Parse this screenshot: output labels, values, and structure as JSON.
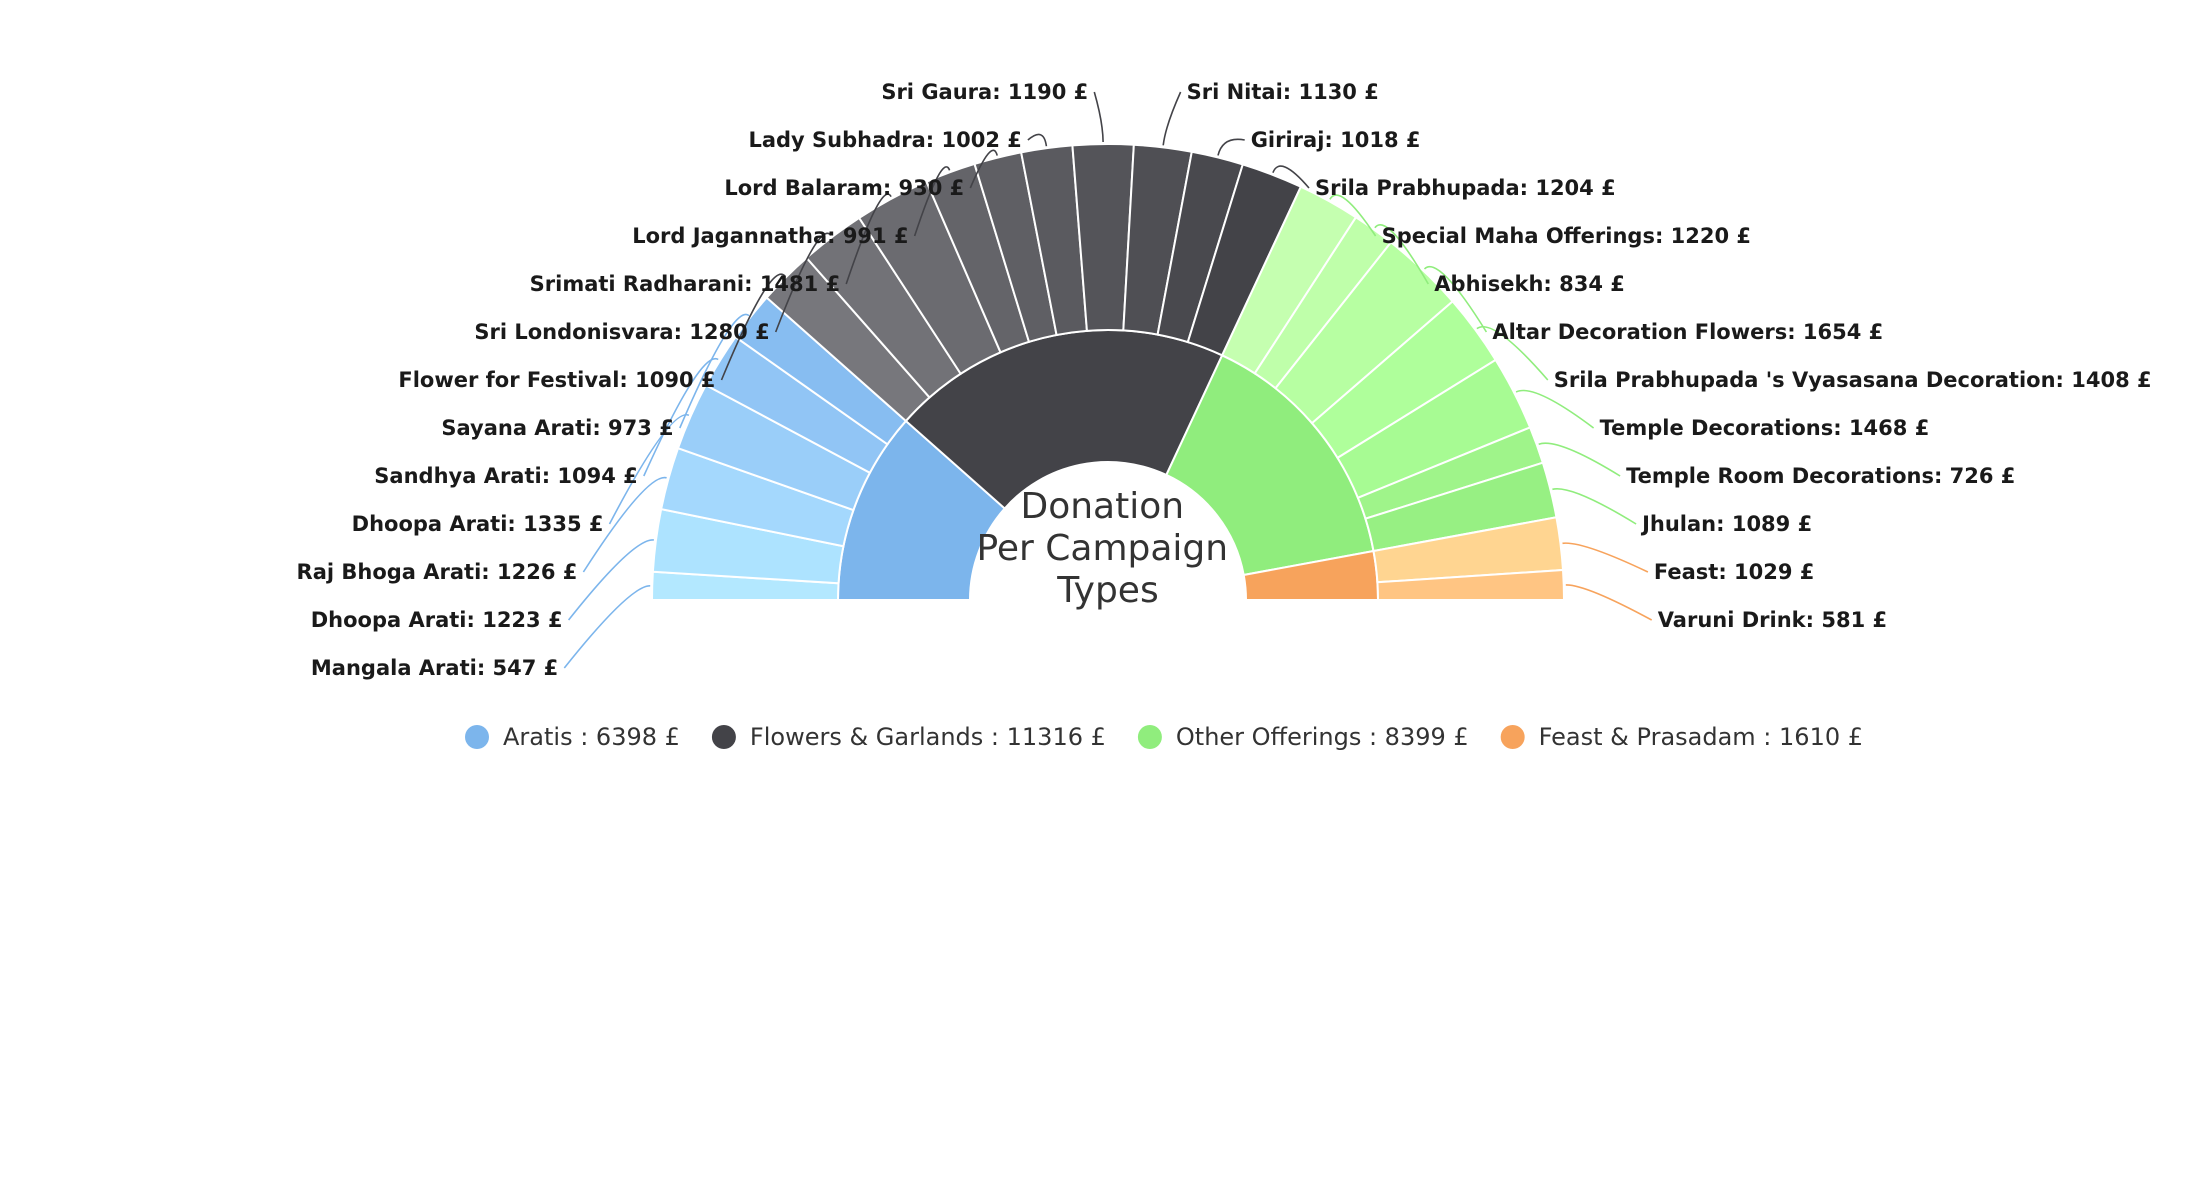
{
  "chart_data": {
    "type": "pie",
    "title_lines": [
      "Donation",
      "Per Campaign",
      "Types"
    ],
    "currency": "£",
    "groups": [
      {
        "name": "Aratis",
        "total": 6398,
        "color": "#7cb5ec",
        "items": [
          {
            "name": "Mangala Arati",
            "value": 547,
            "color": "#b3e8ff"
          },
          {
            "name": "Dhoopa Arati",
            "value": 1223,
            "color": "#ade3ff"
          },
          {
            "name": "Raj Bhoga Arati",
            "value": 1226,
            "color": "#a4d8fd"
          },
          {
            "name": "Dhoopa Arati",
            "value": 1335,
            "color": "#9acef9"
          },
          {
            "name": "Sandhya Arati",
            "value": 1094,
            "color": "#91c5f5"
          },
          {
            "name": "Sayana Arati",
            "value": 973,
            "color": "#87bdf1"
          }
        ]
      },
      {
        "name": "Flowers & Garlands",
        "total": 11316,
        "color": "#434348",
        "items": [
          {
            "name": "Flower for Festival",
            "value": 1090,
            "color": "#77777c"
          },
          {
            "name": "Sri Londonisvara",
            "value": 1280,
            "color": "#727277"
          },
          {
            "name": "Srimati Radharani",
            "value": 1481,
            "color": "#6b6b70"
          },
          {
            "name": "Lord Jagannatha",
            "value": 991,
            "color": "#646469"
          },
          {
            "name": "Lord Balaram",
            "value": 930,
            "color": "#5f5f64"
          },
          {
            "name": "Lady Subhadra",
            "value": 1002,
            "color": "#5a5a5f"
          },
          {
            "name": "Sri Gaura",
            "value": 1190,
            "color": "#545459"
          },
          {
            "name": "Sri Nitai",
            "value": 1130,
            "color": "#4f4f54"
          },
          {
            "name": "Giriraj",
            "value": 1018,
            "color": "#49494e"
          },
          {
            "name": "Srila Prabhupada",
            "value": 1204,
            "color": "#434348"
          }
        ]
      },
      {
        "name": "Other Offerings",
        "total": 8399,
        "color": "#90ed7d",
        "items": [
          {
            "name": "Special Maha Offerings",
            "value": 1220,
            "color": "#c5ffb0"
          },
          {
            "name": "Abhisekh",
            "value": 834,
            "color": "#bfffaa"
          },
          {
            "name": "Altar Decoration Flowers",
            "value": 1654,
            "color": "#b7ffa2"
          },
          {
            "name": "Srila Prabhupada 's Vyasasana Decoration",
            "value": 1408,
            "color": "#afff9b"
          },
          {
            "name": "Temple Decorations",
            "value": 1468,
            "color": "#a7fb93"
          },
          {
            "name": "Temple Room Decorations",
            "value": 726,
            "color": "#9ff48a"
          },
          {
            "name": "Jhulan",
            "value": 1089,
            "color": "#97f083"
          }
        ]
      },
      {
        "name": "Feast & Prasadam",
        "total": 1610,
        "color": "#f7a35c",
        "items": [
          {
            "name": "Feast",
            "value": 1029,
            "color": "#ffd591"
          },
          {
            "name": "Varuni Drink",
            "value": 581,
            "color": "#ffc583"
          }
        ]
      }
    ],
    "legend": {
      "position": "bottom",
      "items": [
        {
          "label": "Aratis : 6398 £",
          "color": "#7cb5ec"
        },
        {
          "label": "Flowers & Garlands : 11316 £",
          "color": "#434348"
        },
        {
          "label": "Other Offerings : 8399 £",
          "color": "#90ed7d"
        },
        {
          "label": "Feast & Prasadam : 1610 £",
          "color": "#f7a35c"
        }
      ]
    }
  }
}
